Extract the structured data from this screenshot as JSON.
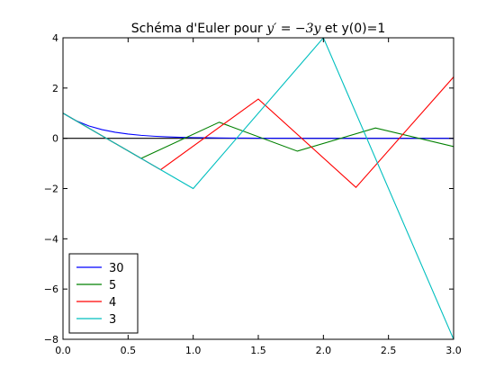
{
  "chart_data": {
    "type": "line",
    "title_prefix": "Schéma d'Euler pour ",
    "title_math": "y′ = −3y",
    "title_suffix": " et y(0)=1",
    "xlim": [
      0.0,
      3.0
    ],
    "ylim": [
      -8,
      4
    ],
    "x_ticks": [
      0.0,
      0.5,
      1.0,
      1.5,
      2.0,
      2.5,
      3.0
    ],
    "x_tick_labels": [
      "0.0",
      "0.5",
      "1.0",
      "1.5",
      "2.0",
      "2.5",
      "3.0"
    ],
    "y_ticks": [
      4,
      2,
      0,
      -2,
      -4,
      -6,
      -8
    ],
    "y_tick_labels": [
      "4",
      "2",
      "0",
      "−2",
      "−4",
      "−6",
      "−8"
    ],
    "grid": false,
    "legend_position": "lower-left",
    "reference_line": {
      "y": 0,
      "color": "#000000"
    },
    "series": [
      {
        "name": "30",
        "color": "#0000ff",
        "n": 30,
        "x": [
          0.0,
          0.1,
          0.2,
          0.3,
          0.4,
          0.5,
          0.6,
          0.7,
          0.8,
          0.9,
          1.0,
          1.1,
          1.2,
          1.3,
          1.4,
          1.5,
          1.6,
          1.7,
          1.8,
          1.9,
          2.0,
          2.1,
          2.2,
          2.3,
          2.4,
          2.5,
          2.6,
          2.7,
          2.8,
          2.9,
          3.0
        ],
        "y": [
          1.0,
          0.7,
          0.49,
          0.343,
          0.2401,
          0.1681,
          0.1176,
          0.0824,
          0.0576,
          0.0404,
          0.0282,
          0.0198,
          0.0138,
          0.0097,
          0.0068,
          0.0047,
          0.0033,
          0.0023,
          0.0016,
          0.0011,
          0.0008,
          0.0006,
          0.0004,
          0.0003,
          0.0002,
          0.0001,
          0.0001,
          0.0001,
          0.0,
          0.0,
          0.0
        ]
      },
      {
        "name": "5",
        "color": "#008000",
        "n": 5,
        "x": [
          0.0,
          0.6,
          1.2,
          1.8,
          2.4,
          3.0
        ],
        "y": [
          1.0,
          -0.8,
          0.64,
          -0.512,
          0.4096,
          -0.3277
        ]
      },
      {
        "name": "4",
        "color": "#ff0000",
        "n": 4,
        "x": [
          0.0,
          0.75,
          1.5,
          2.25,
          3.0
        ],
        "y": [
          1.0,
          -1.25,
          1.5625,
          -1.9531,
          2.4414
        ]
      },
      {
        "name": "3",
        "color": "#00bfbf",
        "n": 3,
        "x": [
          0.0,
          1.0,
          2.0,
          3.0
        ],
        "y": [
          1.0,
          -2.0,
          4.0,
          -8.0
        ]
      }
    ]
  }
}
